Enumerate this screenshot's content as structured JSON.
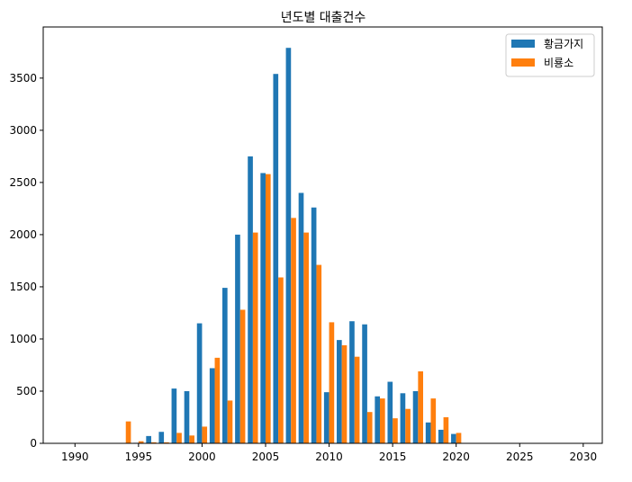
{
  "chart_data": {
    "type": "bar",
    "title": "년도별 대출건수",
    "xlabel": "",
    "ylabel": "",
    "xlim": [
      1987.5,
      2031.5
    ],
    "ylim": [
      0,
      3990
    ],
    "xticks": [
      1990,
      1995,
      2000,
      2005,
      2010,
      2015,
      2020,
      2025,
      2030
    ],
    "yticks": [
      0,
      500,
      1000,
      1500,
      2000,
      2500,
      3000,
      3500
    ],
    "grid": false,
    "legend_position": "top-right",
    "series": [
      {
        "name": "황금가지",
        "color": "#1f77b4",
        "x": [
          1995,
          1996,
          1997,
          1998,
          1999,
          2000,
          2001,
          2002,
          2003,
          2004,
          2005,
          2006,
          2007,
          2008,
          2009,
          2010,
          2011,
          2012,
          2013,
          2014,
          2015,
          2016,
          2017,
          2018,
          2019,
          2020
        ],
        "values": [
          5,
          70,
          110,
          525,
          500,
          1150,
          720,
          1490,
          2000,
          2750,
          2590,
          3540,
          3790,
          2400,
          2260,
          490,
          990,
          1170,
          1140,
          450,
          590,
          480,
          500,
          200,
          130,
          90
        ]
      },
      {
        "name": "비룡소",
        "color": "#ff7f0e",
        "x": [
          1994,
          1995,
          1996,
          1997,
          1998,
          1999,
          2000,
          2001,
          2002,
          2003,
          2004,
          2005,
          2006,
          2007,
          2008,
          2009,
          2010,
          2011,
          2012,
          2013,
          2014,
          2015,
          2016,
          2017,
          2018,
          2019,
          2020
        ],
        "values": [
          210,
          20,
          10,
          10,
          100,
          75,
          160,
          820,
          410,
          1280,
          2020,
          2580,
          1590,
          2160,
          2020,
          1710,
          1160,
          940,
          830,
          300,
          430,
          240,
          330,
          690,
          430,
          250,
          100
        ]
      }
    ]
  }
}
